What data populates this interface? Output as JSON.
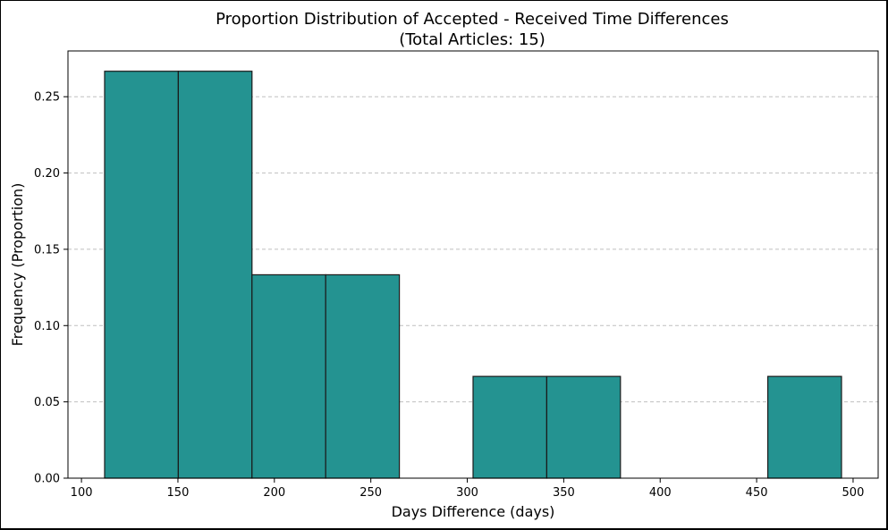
{
  "chart_data": {
    "type": "bar",
    "title_line1": "Proportion Distribution of Accepted - Received Time Differences",
    "title_line2": "(Total Articles: 15)",
    "xlabel": "Days Difference (days)",
    "ylabel": "Frequency (Proportion)",
    "xlim": [
      93,
      513
    ],
    "ylim": [
      0,
      0.28
    ],
    "xticks": [
      100,
      150,
      200,
      250,
      300,
      350,
      400,
      450,
      500
    ],
    "yticks": [
      0.0,
      0.05,
      0.1,
      0.15,
      0.2,
      0.25
    ],
    "ytick_labels": [
      "0.00",
      "0.05",
      "0.10",
      "0.15",
      "0.20",
      "0.25"
    ],
    "grid": "y-dashed",
    "bin_edges": [
      112,
      150.2,
      188.4,
      226.6,
      264.8,
      303,
      341.2,
      379.4,
      417.6,
      455.8,
      494
    ],
    "values": [
      0.2667,
      0.2667,
      0.1333,
      0.1333,
      0,
      0.0667,
      0.0667,
      0,
      0,
      0.0667
    ],
    "colors": {
      "bar_fill": "#249391",
      "bar_edge": "#1a1a1a"
    }
  }
}
